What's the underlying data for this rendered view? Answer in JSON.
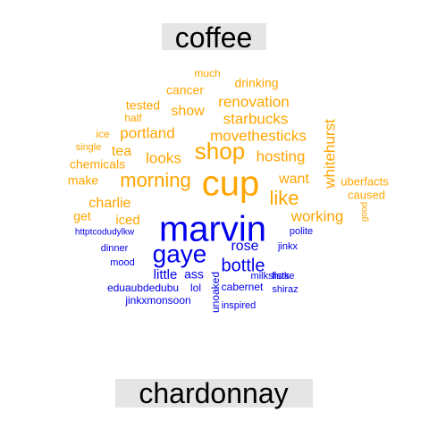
{
  "chart_data": {
    "type": "comparison-wordcloud",
    "groups": [
      {
        "name": "coffee",
        "color": "#FFA500",
        "words": [
          "cup",
          "shop",
          "morning",
          "like",
          "movethesticks",
          "starbucks",
          "renovation",
          "portland",
          "looks",
          "hosting",
          "whitehurst",
          "working",
          "show",
          "want",
          "charlie",
          "iced",
          "tea",
          "chemicals",
          "make",
          "drinking",
          "cancer",
          "tested",
          "half",
          "much",
          "ice",
          "single",
          "get",
          "uberfacts",
          "caused",
          "good"
        ]
      },
      {
        "name": "chardonnay",
        "color": "#0000EE",
        "words": [
          "marvin",
          "gaye",
          "bottle",
          "rose",
          "little",
          "ass",
          "unoaked",
          "eduaubdedubu",
          "lol",
          "cabernet",
          "shiraz",
          "fists",
          "milkshake",
          "jinkx",
          "polite",
          "httptcodudylkw",
          "dinner",
          "mood",
          "jinkxmonsoon",
          "inspired"
        ]
      }
    ]
  }
}
